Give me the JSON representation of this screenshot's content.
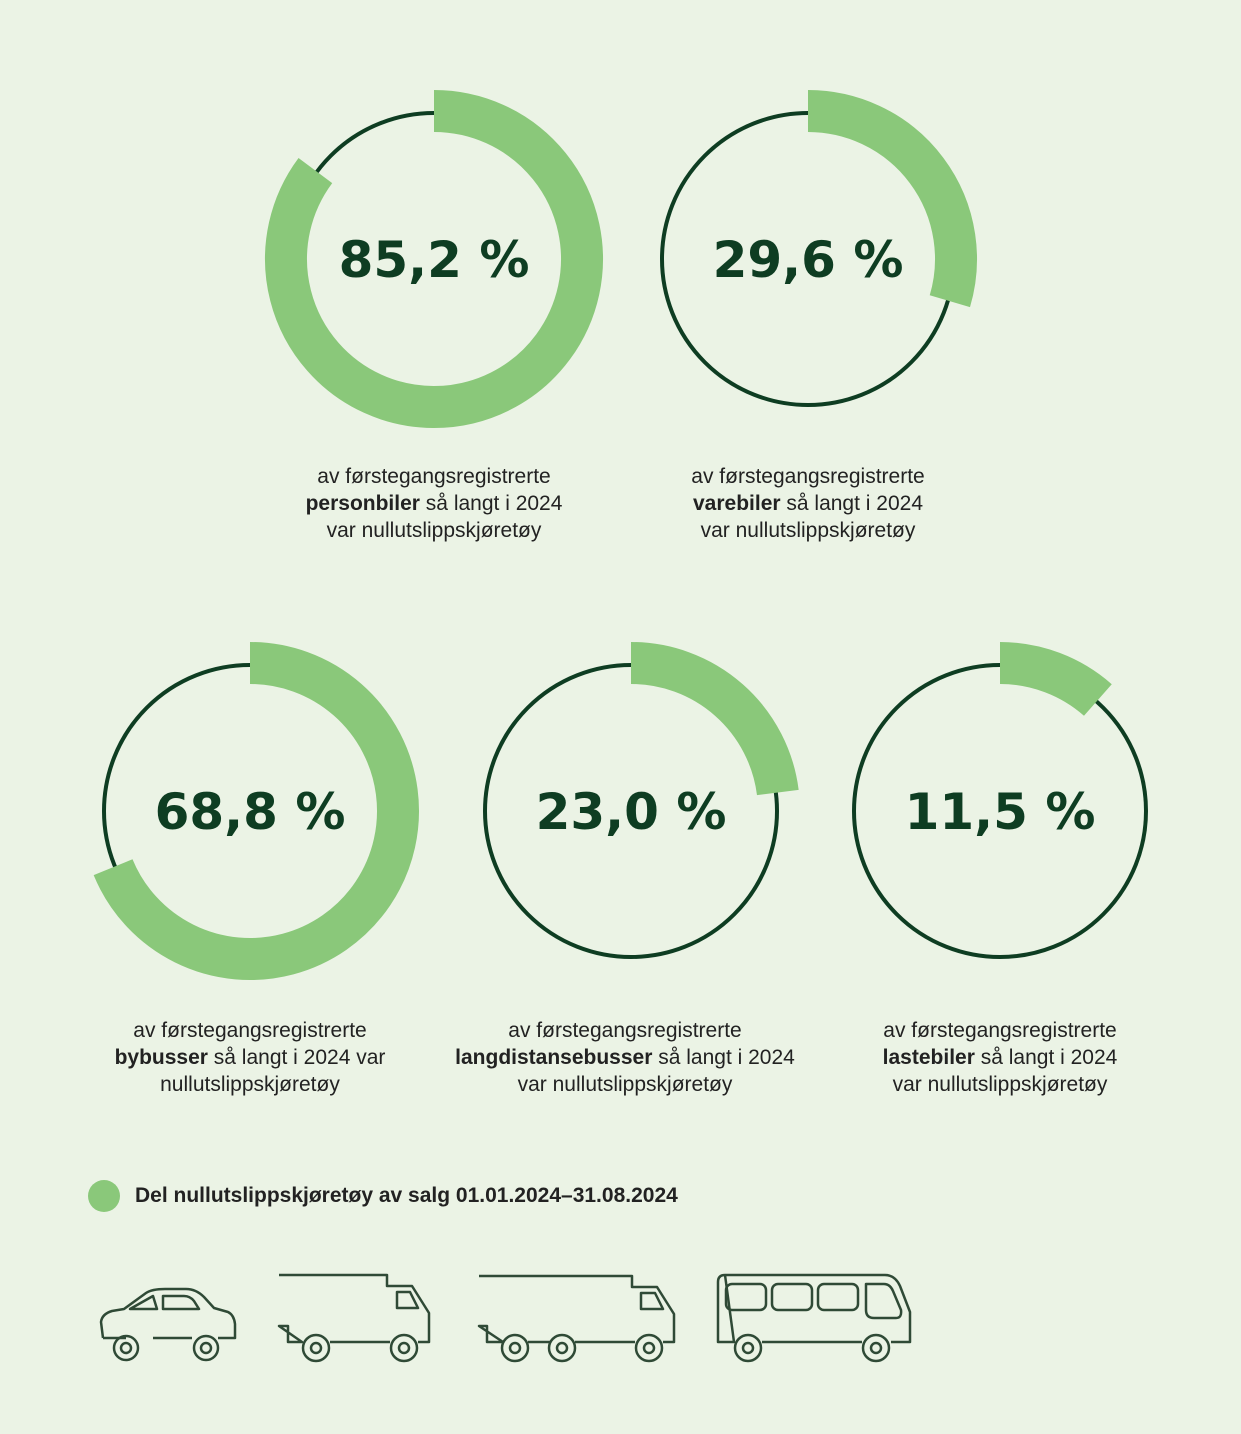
{
  "colors": {
    "background": "#ebf3e5",
    "accent": "#8ac87a",
    "dark": "#0e3d22"
  },
  "chart_data": {
    "type": "pie",
    "items": [
      {
        "value": 85.2,
        "label": "85,2 %",
        "pre": "av førstegangsregistrerte",
        "bold": "personbiler",
        "post": " så langt i 2024",
        "line3": "var nullutslippskjøretøy"
      },
      {
        "value": 29.6,
        "label": "29,6 %",
        "pre": "av førstegangsregistrerte",
        "bold": "varebiler",
        "post": " så langt i 2024",
        "line3": "var nullutslippskjøretøy"
      },
      {
        "value": 68.8,
        "label": "68,8 %",
        "pre": "av førstegangsregistrerte",
        "bold": "bybusser",
        "post": " så langt i 2024 var",
        "line3": "nullutslippskjøretøy"
      },
      {
        "value": 23.0,
        "label": "23,0 %",
        "pre": "av førstegangsregistrerte",
        "bold": "langdistansebusser",
        "post": " så langt i 2024",
        "line3": "var nullutslippskjøretøy"
      },
      {
        "value": 11.5,
        "label": "11,5 %",
        "pre": "av førstegangsregistrerte",
        "bold": "lastebiler",
        "post": " så langt i 2024",
        "line3": "var nullutslippskjøretøy"
      }
    ],
    "legend": "Del nullutslippskjøretøy av salg 01.01.2024–31.08.2024"
  },
  "icons": [
    "car-icon",
    "van-icon",
    "truck-icon",
    "bus-icon"
  ]
}
